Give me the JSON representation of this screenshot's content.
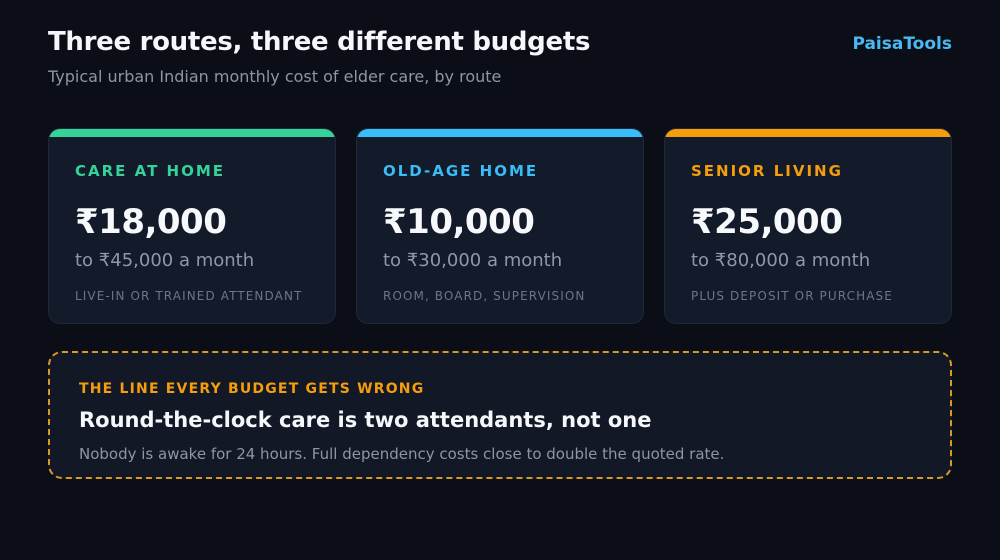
{
  "header": {
    "title": "Three routes, three different budgets",
    "subtitle": "Typical urban Indian monthly cost of elder care, by route",
    "brand": "PaisaTools"
  },
  "cards": [
    {
      "label": "CARE AT HOME",
      "amount": "₹18,000",
      "range": "to ₹45,000 a month",
      "note": "LIVE-IN OR TRAINED ATTENDANT",
      "accent": "#34d399"
    },
    {
      "label": "OLD-AGE HOME",
      "amount": "₹10,000",
      "range": "to ₹30,000 a month",
      "note": "ROOM, BOARD, SUPERVISION",
      "accent": "#38bdf8"
    },
    {
      "label": "SENIOR LIVING",
      "amount": "₹25,000",
      "range": "to ₹80,000 a month",
      "note": "PLUS DEPOSIT OR PURCHASE",
      "accent": "#f59e0b"
    }
  ],
  "callout": {
    "label": "THE LINE EVERY BUDGET GETS WRONG",
    "headline": "Round-the-clock care is two attendants, not one",
    "body": "Nobody is awake for 24 hours. Full dependency costs close to double the quoted rate.",
    "accent": "#f59e0b"
  }
}
